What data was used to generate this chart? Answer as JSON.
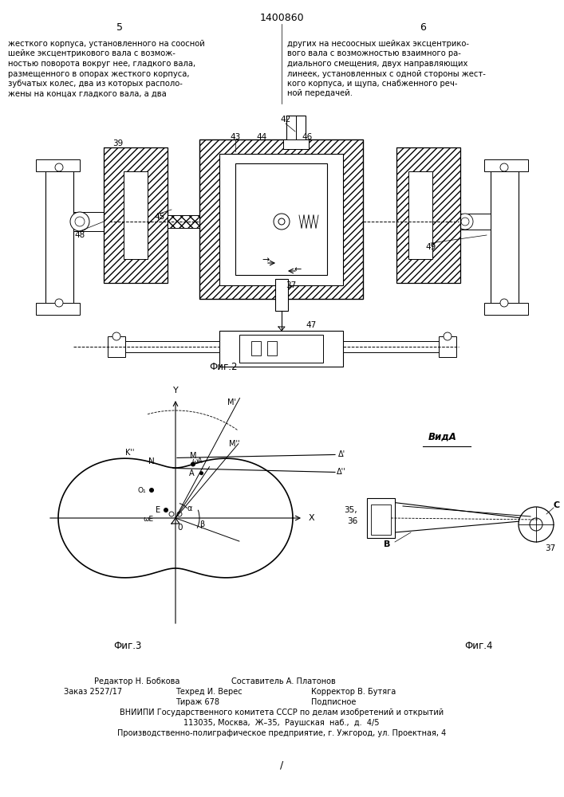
{
  "title": "1400860",
  "page_left": "5",
  "page_right": "6",
  "text_left_lines": [
    "жесткого корпуса, установленного на соосной",
    "шейке эксцентрикового вала с возмож-",
    "ностью поворота вокруг нее, гладкого вала,",
    "размещенного в опорах жесткого корпуса,",
    "зубчатых колес, два из которых располо-",
    "жены на концах гладкого вала, а два"
  ],
  "text_right_lines": [
    "других на несоосных шейках эксцентрико-",
    "вого вала с возможностью взаимного ра-",
    "диального смещения, двух направляющих",
    "линеек, установленных с одной стороны жест-",
    "кого корпуса, и щупа, снабженного реч-",
    "ной передачей."
  ],
  "fig2_label": "Фиг.2",
  "fig3_label": "Фиг.3",
  "fig4_label": "Фиг.4",
  "vida_label": "ВидА",
  "footer_col1_line1": "Редактор Н. Бобкова",
  "footer_col2_line1": "Составитель А. Платонов",
  "footer_col1_line2": "Заказ 2527/17",
  "footer_col2_line2": "Техред И. Верес",
  "footer_col3_line2": "Корректор В. Бутяга",
  "footer_col2_line3": "Тираж 678",
  "footer_col3_line3": "Подписное",
  "footer_line4": "ВНИИПИ Государственного комитета СССР по делам изобретений и открытий",
  "footer_line5": "113035, Москва,  Ж–35,  Раушская  наб.,  д.  4/5",
  "footer_line6": "Производственно-полиграфическое предприятие, г. Ужгород, ул. Проектная, 4",
  "bg_color": "#ffffff"
}
